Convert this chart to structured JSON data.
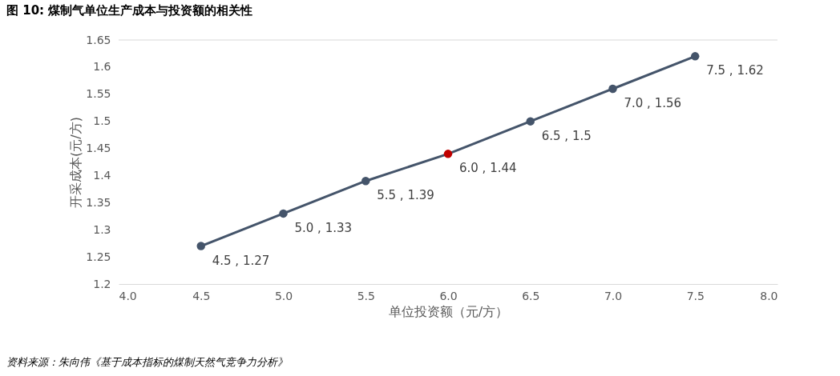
{
  "chart_data": {
    "type": "line",
    "title": "图 10: 煤制气单位生产成本与投资额的相关性",
    "xlabel": "单位投资额（元/方）",
    "ylabel": "开采成本(元/方)",
    "x": [
      4.5,
      5.0,
      5.5,
      6.0,
      6.5,
      7.0,
      7.5
    ],
    "series": [
      {
        "color": "#44546a",
        "colors": [
          "#44546a",
          "#44546a",
          "#44546a",
          "#c00000",
          "#44546a",
          "#44546a",
          "#44546a"
        ],
        "values": [
          1.27,
          1.33,
          1.39,
          1.44,
          1.5,
          1.56,
          1.62
        ],
        "value_labels": [
          "4.5 , 1.27",
          "5.0 , 1.33",
          "5.5 , 1.39",
          "6.0 , 1.44",
          "6.5 , 1.5",
          "7.0 , 1.56",
          "7.5 , 1.62"
        ]
      }
    ],
    "xlim": [
      4.0,
      8.0
    ],
    "xticks": [
      {
        "value": 4,
        "label": "4.0"
      },
      {
        "value": 4.5,
        "label": "4.5"
      },
      {
        "value": 5,
        "label": "5.0"
      },
      {
        "value": 5.5,
        "label": "5.5"
      },
      {
        "value": 6,
        "label": "6.0"
      },
      {
        "value": 6.5,
        "label": "6.5"
      },
      {
        "value": 7,
        "label": "7.0"
      },
      {
        "value": 7.5,
        "label": "7.5"
      },
      {
        "value": 8,
        "label": "8.0"
      }
    ],
    "ylim": [
      1.2,
      1.65
    ],
    "yticks": [
      1.2,
      1.25,
      1.3,
      1.35,
      1.4,
      1.45,
      1.5,
      1.55,
      1.6,
      1.65
    ],
    "grid": false,
    "marker": "circle",
    "line_style": "solid",
    "annotations": [
      "资料来源：朱向伟《基于成本指标的煤制天然气竞争力分析》"
    ]
  }
}
